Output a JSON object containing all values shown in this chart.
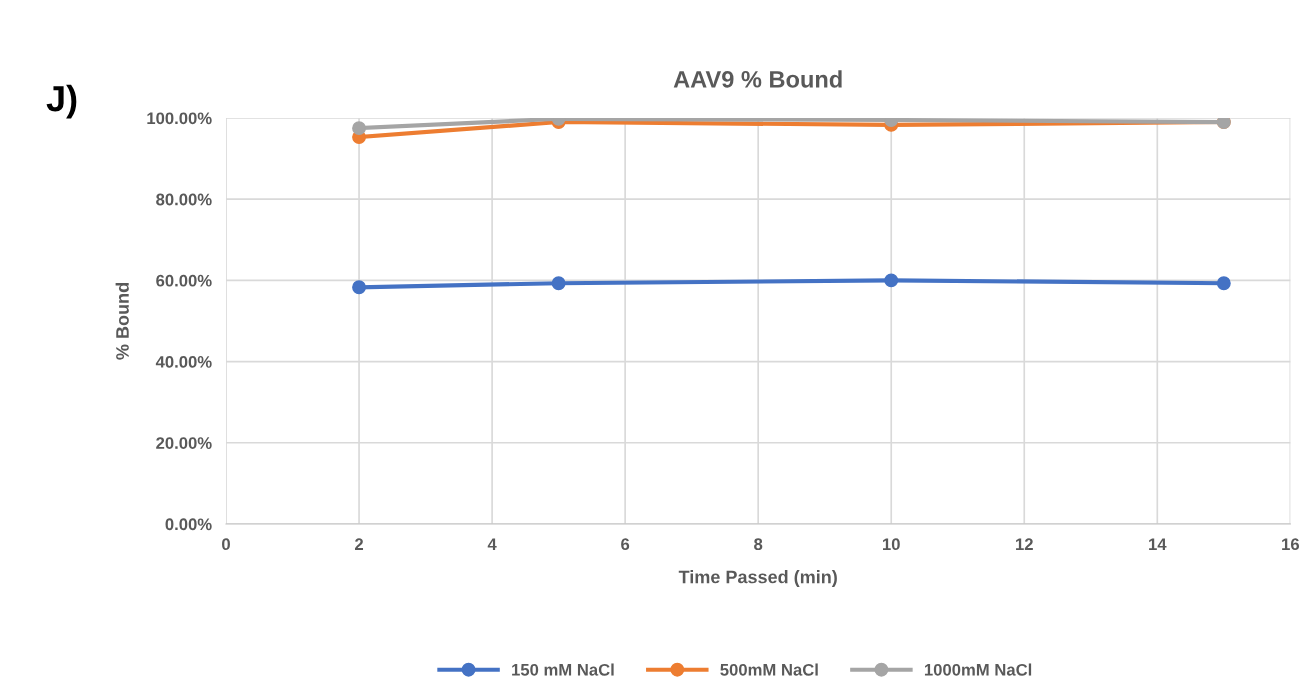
{
  "chart_data": {
    "type": "line",
    "title": "AAV9 % Bound",
    "xlabel": "Time Passed (min)",
    "ylabel": "% Bound",
    "annotations": [
      "J)"
    ],
    "x": [
      2,
      5,
      10,
      15
    ],
    "series": [
      {
        "name": "150 mM NaCl",
        "color": "#4472c4",
        "values": [
          58.3,
          59.3,
          60.0,
          59.3
        ]
      },
      {
        "name": "500mM NaCl",
        "color": "#ed7d31",
        "values": [
          95.3,
          99.0,
          98.3,
          99.0
        ]
      },
      {
        "name": "1000mM NaCl",
        "color": "#a5a5a5",
        "values": [
          97.5,
          99.8,
          99.5,
          99.0
        ]
      }
    ],
    "xlim": [
      0,
      16
    ],
    "xticks": [
      0,
      2,
      4,
      6,
      8,
      10,
      12,
      14,
      16
    ],
    "ylim": [
      0,
      100
    ],
    "yticks": [
      {
        "value": 0,
        "label": "0.00%"
      },
      {
        "value": 20,
        "label": "20.00%"
      },
      {
        "value": 40,
        "label": "40.00%"
      },
      {
        "value": 60,
        "label": "60.00%"
      },
      {
        "value": 80,
        "label": "80.00%"
      },
      {
        "value": 100,
        "label": "100.00%"
      }
    ],
    "grid": true,
    "legend": "bottom",
    "marker": "circle",
    "line_style": "solid"
  }
}
